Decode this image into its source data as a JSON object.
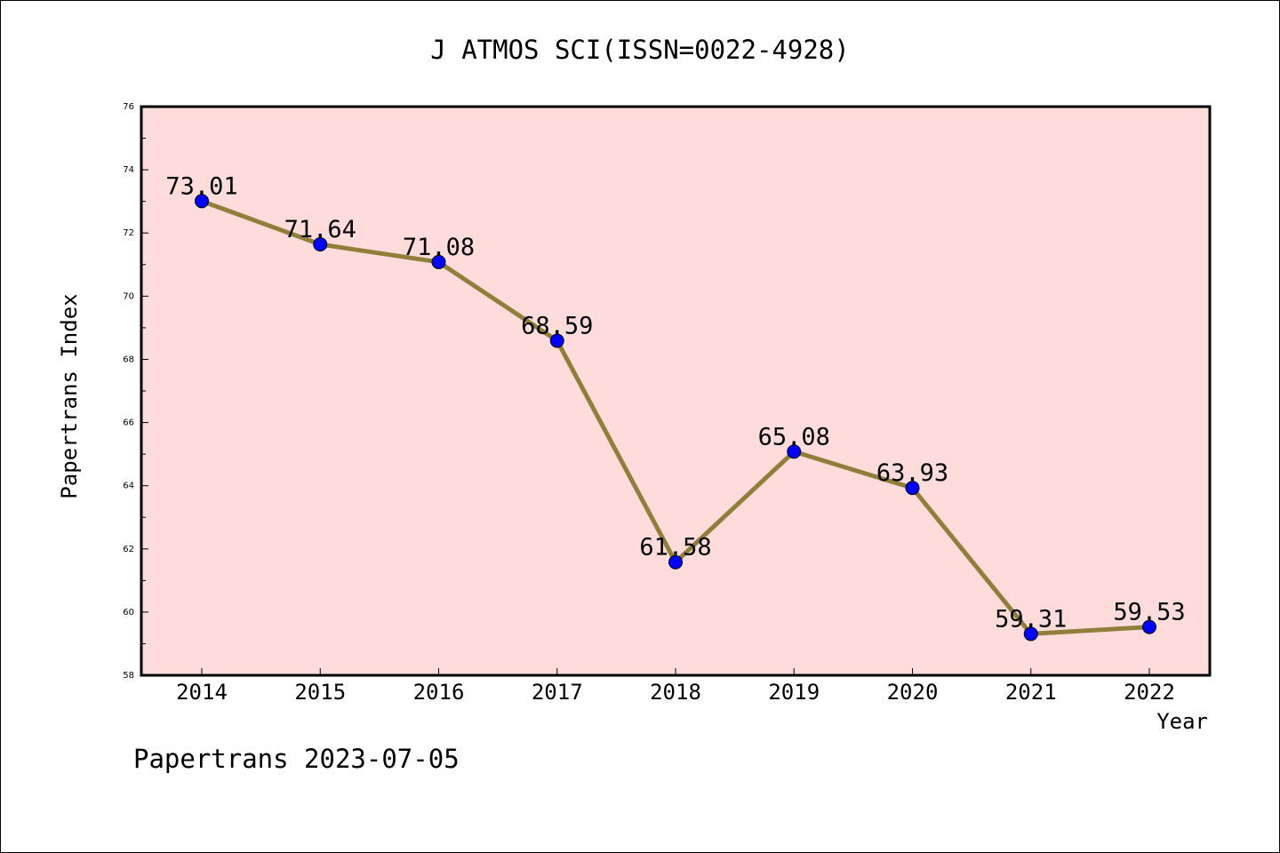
{
  "chart_data": {
    "type": "line",
    "title": "J ATMOS SCI(ISSN=0022-4928)",
    "xlabel": "Year",
    "ylabel": "Papertrans Index",
    "categories": [
      "2014",
      "2015",
      "2016",
      "2017",
      "2018",
      "2019",
      "2020",
      "2021",
      "2022"
    ],
    "series": [
      {
        "values": [
          73.01,
          71.64,
          71.08,
          68.59,
          61.58,
          65.08,
          63.93,
          59.31,
          59.53
        ],
        "labels": [
          "73.01",
          "71.64",
          "71.08",
          "68.59",
          "61.58",
          "65.08",
          "63.93",
          "59.31",
          "59.53"
        ]
      }
    ],
    "ylim": [
      58,
      76
    ],
    "yticks": [
      "58",
      "60",
      "62",
      "64",
      "66",
      "68",
      "70",
      "72",
      "74",
      "76"
    ],
    "grid": false,
    "line_color": "#8f7f3a",
    "marker_color": "#0000ff",
    "plot_background": "#ffdcdc"
  },
  "footer": {
    "caption": "Papertrans 2023-07-05"
  }
}
